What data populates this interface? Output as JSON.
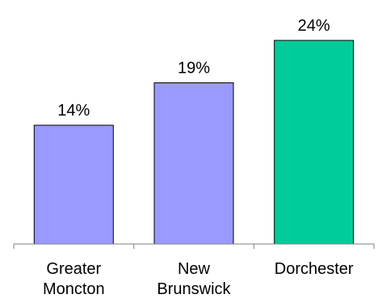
{
  "chart_data": {
    "type": "bar",
    "categories": [
      [
        "Greater",
        "Moncton"
      ],
      [
        "New",
        "Brunswick"
      ],
      [
        "Dorchester"
      ]
    ],
    "values": [
      14,
      19,
      24
    ],
    "value_labels": [
      "14%",
      "19%",
      "24%"
    ],
    "unit": "%",
    "bar_colors": [
      "#9999ff",
      "#9999ff",
      "#00cc99"
    ],
    "bar_outline_color": "#000000",
    "axis_color": "#808080",
    "ylim": [
      0,
      26
    ],
    "grid": false,
    "legend": "none",
    "title": "",
    "xlabel": "",
    "ylabel": ""
  }
}
